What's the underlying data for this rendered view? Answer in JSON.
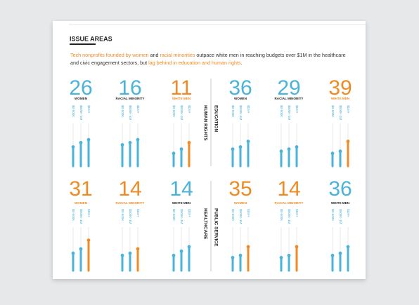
{
  "header": {
    "title": "ISSUE AREAS"
  },
  "intro": [
    {
      "text": "Tech nonprofits founded by women",
      "highlight": true
    },
    {
      "text": " and ",
      "highlight": false
    },
    {
      "text": "racial minorities",
      "highlight": true
    },
    {
      "text": " outpace white men in reaching budgets over $1M in the healthcare and civic engagement sectors, but ",
      "highlight": false
    },
    {
      "text": "lag behind in education and human rights",
      "highlight": true
    },
    {
      "text": ".",
      "highlight": false
    }
  ],
  "bracket_labels": [
    "$0-500K",
    "$500K-1M",
    "$1M+"
  ],
  "panels": [
    {
      "label": "HUMAN RIGHTS",
      "groups": [
        {
          "value": 26,
          "label": "WOMEN",
          "color": "#4ab3d9",
          "bars": [
            45,
            55,
            62
          ],
          "bar_colors": [
            "#4ab3d9",
            "#4ab3d9",
            "#4ab3d9"
          ]
        },
        {
          "value": 16,
          "label": "RACIAL MINORITY",
          "color": "#4ab3d9",
          "bars": [
            50,
            55,
            62
          ],
          "bar_colors": [
            "#4ab3d9",
            "#4ab3d9",
            "#4ab3d9"
          ]
        },
        {
          "value": 11,
          "label": "WHITE MEN",
          "color": "#f08a24",
          "bars": [
            30,
            40,
            55
          ],
          "bar_colors": [
            "#4ab3d9",
            "#4ab3d9",
            "#f08a24"
          ]
        }
      ]
    },
    {
      "label": "EDUCATION",
      "groups": [
        {
          "value": 36,
          "label": "WOMEN",
          "color": "#4ab3d9",
          "bars": [
            40,
            45,
            58
          ],
          "bar_colors": [
            "#4ab3d9",
            "#4ab3d9",
            "#4ab3d9"
          ]
        },
        {
          "value": 29,
          "label": "RACIAL MINORITY",
          "color": "#4ab3d9",
          "bars": [
            35,
            40,
            45
          ],
          "bar_colors": [
            "#4ab3d9",
            "#4ab3d9",
            "#4ab3d9"
          ]
        },
        {
          "value": 39,
          "label": "WHITE MEN",
          "color": "#f08a24",
          "bars": [
            30,
            35,
            58
          ],
          "bar_colors": [
            "#4ab3d9",
            "#4ab3d9",
            "#f08a24"
          ]
        }
      ]
    },
    {
      "label": "HEALTHCARE",
      "groups": [
        {
          "value": 31,
          "label": "WOMEN",
          "color": "#f08a24",
          "bars": [
            40,
            50,
            70
          ],
          "bar_colors": [
            "#4ab3d9",
            "#4ab3d9",
            "#f08a24"
          ]
        },
        {
          "value": 14,
          "label": "RACIAL MINORITY",
          "color": "#f08a24",
          "bars": [
            35,
            40,
            50
          ],
          "bar_colors": [
            "#4ab3d9",
            "#4ab3d9",
            "#f08a24"
          ]
        },
        {
          "value": 14,
          "label": "WHITE MEN",
          "color": "#4ab3d9",
          "bars": [
            35,
            45,
            55
          ],
          "bar_colors": [
            "#4ab3d9",
            "#4ab3d9",
            "#4ab3d9"
          ]
        }
      ]
    },
    {
      "label": "PUBLIC SERVICE",
      "groups": [
        {
          "value": 35,
          "label": "WOMEN",
          "color": "#f08a24",
          "bars": [
            30,
            35,
            55
          ],
          "bar_colors": [
            "#4ab3d9",
            "#4ab3d9",
            "#f08a24"
          ]
        },
        {
          "value": 14,
          "label": "RACIAL MINORITY",
          "color": "#f08a24",
          "bars": [
            30,
            35,
            55
          ],
          "bar_colors": [
            "#4ab3d9",
            "#4ab3d9",
            "#f08a24"
          ]
        },
        {
          "value": 36,
          "label": "WHITE MEN",
          "color": "#4ab3d9",
          "bars": [
            35,
            40,
            55
          ],
          "bar_colors": [
            "#4ab3d9",
            "#4ab3d9",
            "#4ab3d9"
          ]
        }
      ]
    }
  ]
}
